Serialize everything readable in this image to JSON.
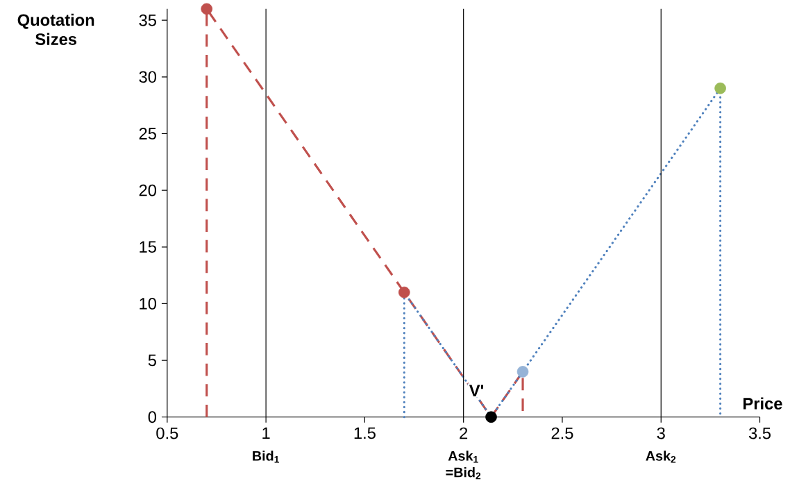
{
  "chart_data": {
    "type": "line",
    "xlabel": "Price",
    "ylabel": "Quotation Sizes",
    "xlim": [
      0.5,
      3.5
    ],
    "xticks": [
      0.5,
      1,
      1.5,
      2,
      2.5,
      3,
      3.5
    ],
    "ylim": [
      0,
      36
    ],
    "yticks": [
      0,
      5,
      10,
      15,
      20,
      25,
      30,
      35
    ],
    "series": [
      {
        "color": "#c0504d",
        "line_style": "dashed",
        "x": [
          0.7,
          0.7,
          1.7,
          2.14,
          2.3,
          2.3
        ],
        "values": [
          0,
          36,
          11,
          0,
          4,
          0
        ]
      },
      {
        "color": "#4f81bd",
        "line_style": "dotted",
        "x": [
          1.7,
          1.7,
          2.14,
          2.3,
          3.3,
          3.3
        ],
        "values": [
          0,
          11,
          0,
          4,
          29,
          0
        ]
      },
      {
        "type": "scatter",
        "marker": "circle",
        "x": [
          0.7,
          1.7,
          2.3,
          3.3,
          2.14
        ],
        "values": [
          36,
          11,
          4,
          29,
          0
        ],
        "colors": [
          "#c0504d",
          "#c0504d",
          "#95b3d7",
          "#9bbb59",
          "#000000"
        ]
      }
    ],
    "ref_lines": [
      {
        "axis": "x",
        "value": 1,
        "label": "Bid$_{1}$",
        "color": "#000000"
      },
      {
        "axis": "x",
        "value": 2,
        "label": "Ask$_{1}$ =Bid$_{2}$",
        "color": "#000000"
      },
      {
        "axis": "x",
        "value": 3,
        "label": "Ask$_{2}$",
        "color": "#000000"
      }
    ],
    "annotations": [
      {
        "text": "V'",
        "x": 2.14,
        "y": 0
      }
    ]
  }
}
